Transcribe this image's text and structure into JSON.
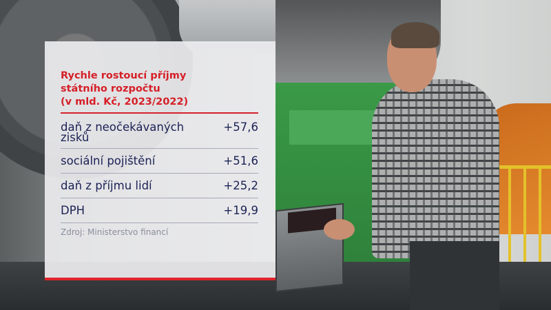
{
  "infographic": {
    "title_lines": [
      "Rychle rostoucí příjmy",
      "státního rozpočtu",
      "(v mld. Kč, 2023/2022)"
    ],
    "rows": [
      {
        "label": "daň z neočekávaných zisků",
        "value": "+57,6"
      },
      {
        "label": "sociální pojištění",
        "value": "+51,6"
      },
      {
        "label": "daň z příjmu lidí",
        "value": "+25,2"
      },
      {
        "label": "DPH",
        "value": "+19,9"
      }
    ],
    "source": "Zdroj: Ministerstvo financí"
  },
  "colors": {
    "accent": "#d52028",
    "text": "#1b2154",
    "source": "#8a8d9c"
  }
}
